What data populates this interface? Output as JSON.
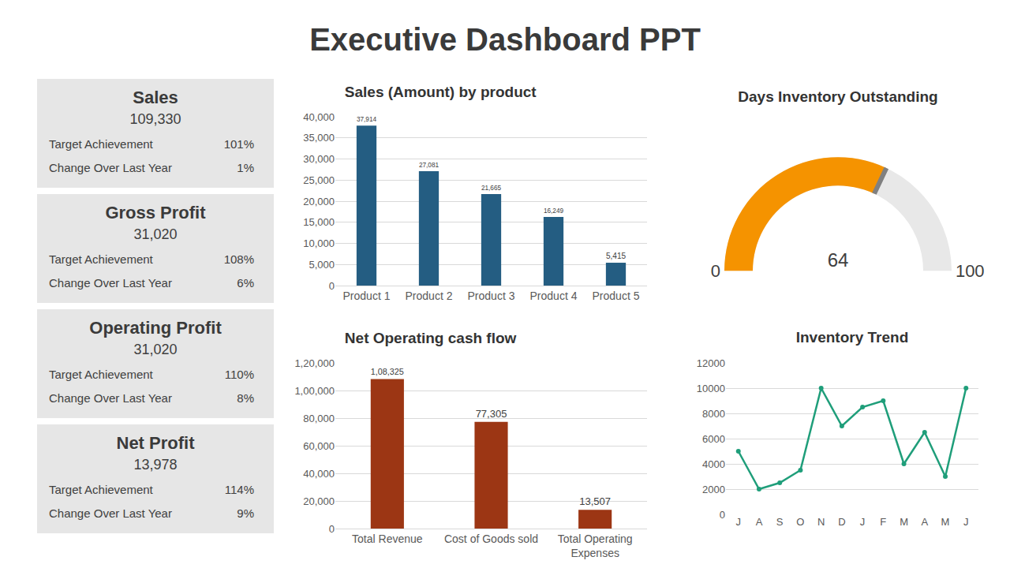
{
  "title": "Executive Dashboard PPT",
  "cards": [
    {
      "title": "Sales",
      "value": "109,330",
      "rows": [
        {
          "label": "Target Achievement",
          "value": "101%"
        },
        {
          "label": "Change Over Last Year",
          "value": "1%"
        }
      ]
    },
    {
      "title": "Gross Profit",
      "value": "31,020",
      "rows": [
        {
          "label": "Target Achievement",
          "value": "108%"
        },
        {
          "label": "Change Over Last Year",
          "value": "6%"
        }
      ]
    },
    {
      "title": "Operating Profit",
      "value": "31,020",
      "rows": [
        {
          "label": "Target Achievement",
          "value": "110%"
        },
        {
          "label": "Change Over Last Year",
          "value": "8%"
        }
      ]
    },
    {
      "title": "Net Profit",
      "value": "13,978",
      "rows": [
        {
          "label": "Target Achievement",
          "value": "114%"
        },
        {
          "label": "Change Over Last Year",
          "value": "9%"
        }
      ]
    }
  ],
  "chart_data": [
    {
      "type": "bar",
      "title": "Sales (Amount) by product",
      "categories": [
        "Product 1",
        "Product 2",
        "Product 3",
        "Product 4",
        "Product 5"
      ],
      "values": [
        37914,
        27081,
        21665,
        16249,
        5415
      ],
      "value_labels": [
        "37,914",
        "27,081",
        "21,665",
        "16,249",
        "5,415"
      ],
      "color": "#245d82",
      "data_labels": true,
      "grid": true,
      "ylim": [
        0,
        40000
      ],
      "yticks": [
        0,
        {
          "value": 5000,
          "label": "5,000"
        },
        {
          "value": 10000,
          "label": "10,000"
        },
        {
          "value": 15000,
          "label": "15,000"
        },
        {
          "value": 20000,
          "label": "20,000"
        },
        {
          "value": 25000,
          "label": "25,000"
        },
        {
          "value": 30000,
          "label": "30,000"
        },
        {
          "value": 35000,
          "label": "35,000"
        },
        {
          "value": 40000,
          "label": "40,000"
        }
      ]
    },
    {
      "type": "gauge",
      "title": "Days Inventory Outstanding",
      "values": [
        64
      ],
      "color": "#f59300",
      "data_labels": true,
      "ylim": [
        0,
        100
      ],
      "yticks": [
        0,
        100
      ]
    },
    {
      "type": "bar",
      "title": "Net Operating cash flow",
      "categories": [
        "Total Revenue",
        "Cost of Goods sold",
        "Total Operating Expenses"
      ],
      "values": [
        108325,
        77305,
        13507
      ],
      "value_labels": [
        "1,08,325",
        "77,305",
        "13,507"
      ],
      "color": "#9c3614",
      "data_labels": true,
      "grid": true,
      "ylim": [
        0,
        120000
      ],
      "yticks": [
        0,
        {
          "value": 20000,
          "label": "20,000"
        },
        {
          "value": 40000,
          "label": "40,000"
        },
        {
          "value": 60000,
          "label": "60,000"
        },
        {
          "value": 80000,
          "label": "80,000"
        },
        {
          "value": 100000,
          "label": "1,00,000"
        },
        {
          "value": 120000,
          "label": "1,20,000"
        }
      ]
    },
    {
      "type": "line",
      "title": "Inventory Trend",
      "categories": [
        "J",
        "A",
        "S",
        "O",
        "N",
        "D",
        "J",
        "F",
        "M",
        "A",
        "M",
        "J"
      ],
      "values": [
        5000,
        2000,
        2500,
        3500,
        10000,
        7000,
        8500,
        9000,
        4000,
        6500,
        3000,
        10000
      ],
      "color": "#1f9e7a",
      "marker": "circle",
      "grid": true,
      "ylim": [
        0,
        12000
      ],
      "yticks": [
        0,
        2000,
        4000,
        6000,
        8000,
        10000,
        12000
      ]
    }
  ]
}
